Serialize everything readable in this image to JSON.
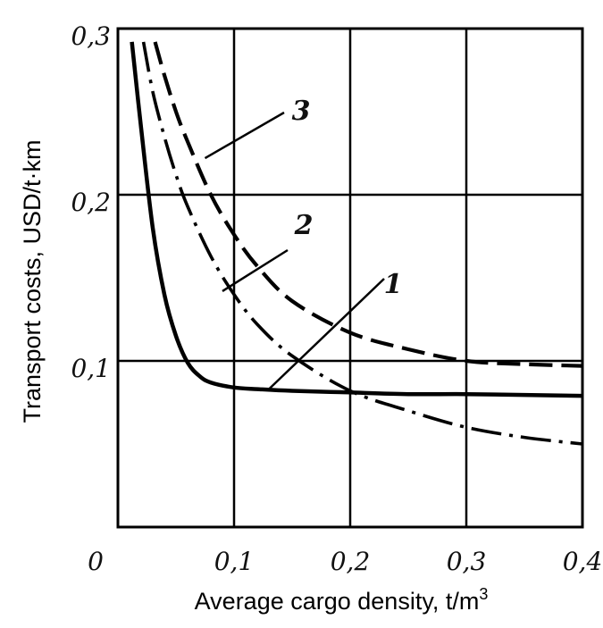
{
  "chart_data": {
    "type": "line",
    "title": "",
    "xlabel": "Average cargo density, t/m",
    "xlabel_superscript": "3",
    "ylabel": "Transport costs, USD/t·km",
    "xlim": [
      0,
      0.4
    ],
    "ylim": [
      0,
      0.3
    ],
    "grid": true,
    "x_ticks": [
      "0",
      "0,1",
      "0,2",
      "0,3",
      "0,4"
    ],
    "y_ticks": [
      "0,1",
      "0,2",
      "0,3"
    ],
    "x_tick_values": [
      0,
      0.1,
      0.2,
      0.3,
      0.4
    ],
    "y_tick_values": [
      0.1,
      0.2,
      0.3
    ],
    "series": [
      {
        "name": "1",
        "style": "solid",
        "x": [
          0.012,
          0.02,
          0.03,
          0.04,
          0.05,
          0.06,
          0.07,
          0.08,
          0.1,
          0.12,
          0.15,
          0.2,
          0.25,
          0.3,
          0.35,
          0.4
        ],
        "y": [
          0.292,
          0.24,
          0.18,
          0.14,
          0.115,
          0.099,
          0.091,
          0.087,
          0.084,
          0.083,
          0.082,
          0.081,
          0.08,
          0.08,
          0.0795,
          0.079
        ]
      },
      {
        "name": "2",
        "style": "dash-dot",
        "x": [
          0.022,
          0.03,
          0.04,
          0.05,
          0.06,
          0.08,
          0.1,
          0.12,
          0.15,
          0.2,
          0.25,
          0.3,
          0.35,
          0.4
        ],
        "y": [
          0.292,
          0.262,
          0.235,
          0.212,
          0.193,
          0.163,
          0.14,
          0.122,
          0.103,
          0.082,
          0.07,
          0.06,
          0.054,
          0.05
        ]
      },
      {
        "name": "3",
        "style": "dashed",
        "x": [
          0.032,
          0.04,
          0.05,
          0.06,
          0.08,
          0.1,
          0.12,
          0.15,
          0.2,
          0.25,
          0.3,
          0.35,
          0.4
        ],
        "y": [
          0.292,
          0.272,
          0.25,
          0.232,
          0.2,
          0.176,
          0.157,
          0.136,
          0.117,
          0.107,
          0.1,
          0.098,
          0.097
        ]
      }
    ],
    "annotations": [
      {
        "text": "1",
        "series": "1"
      },
      {
        "text": "2",
        "series": "2"
      },
      {
        "text": "3",
        "series": "3"
      }
    ]
  }
}
